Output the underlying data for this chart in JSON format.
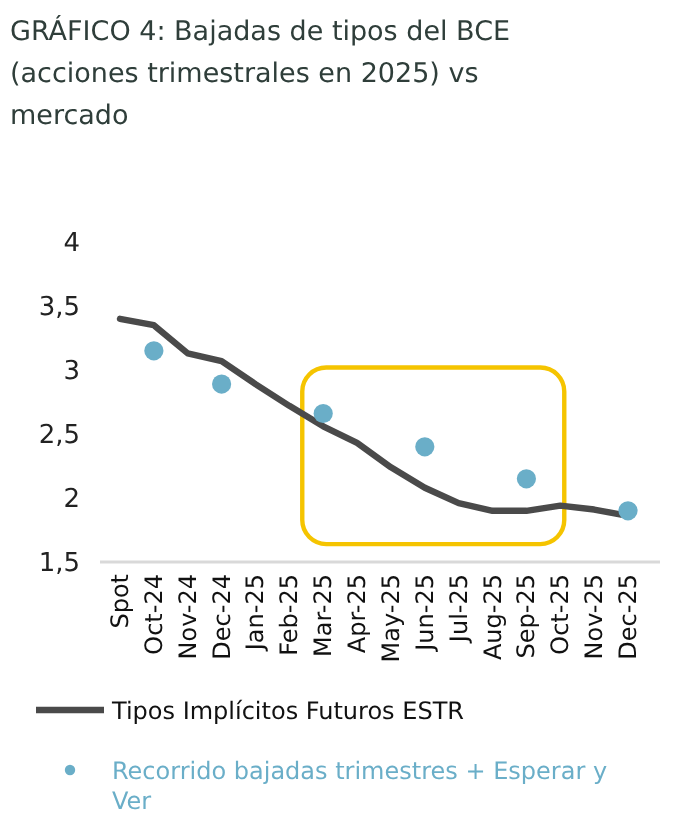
{
  "chart_data": {
    "type": "line",
    "title": "GRÁFICO 4: Bajadas de tipos del BCE (acciones trimestrales en 2025) vs mercado",
    "categories": [
      "Spot",
      "Oct-24",
      "Nov-24",
      "Dec-24",
      "Jan-25",
      "Feb-25",
      "Mar-25",
      "Apr-25",
      "May-25",
      "Jun-25",
      "Jul-25",
      "Aug-25",
      "Sep-25",
      "Oct-25",
      "Nov-25",
      "Dec-25"
    ],
    "series": [
      {
        "name": "Tipos Implícitos Futuros ESTR",
        "color": "#4a4a4a",
        "values": [
          3.4,
          3.35,
          3.13,
          3.07,
          2.89,
          2.72,
          2.56,
          2.43,
          2.24,
          2.08,
          1.96,
          1.9,
          1.9,
          1.94,
          1.91,
          1.86
        ]
      },
      {
        "name": "Recorrido bajadas trimestres + Esperar y Ver",
        "type": "scatter",
        "color": "#6aaec8",
        "marker": "circle",
        "values": [
          null,
          3.15,
          null,
          2.89,
          null,
          null,
          2.66,
          null,
          null,
          2.4,
          null,
          null,
          2.15,
          null,
          null,
          1.9
        ]
      }
    ],
    "ylim": [
      1.5,
      4
    ],
    "yticks": [
      {
        "value": 1.5,
        "label": "1,5"
      },
      2,
      {
        "value": 2.5,
        "label": "2,5"
      },
      3,
      {
        "value": 3.5,
        "label": "3,5"
      },
      4
    ],
    "grid": false,
    "legend": "bottom"
  }
}
